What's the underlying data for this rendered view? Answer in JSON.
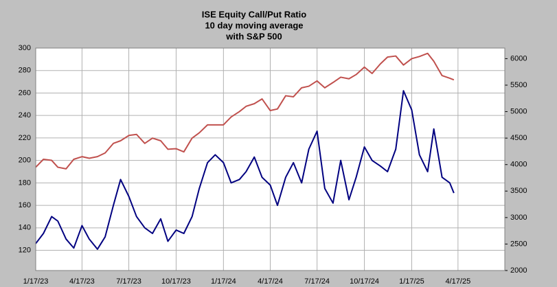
{
  "chart_data": {
    "type": "line",
    "title": [
      "ISE  Equity Call/Put Ratio",
      "10 day moving average",
      "with S&P 500"
    ],
    "x": [
      "1/17/23",
      "2/1/23",
      "2/17/23",
      "3/1/23",
      "3/17/23",
      "4/1/23",
      "4/17/23",
      "5/1/23",
      "5/17/23",
      "6/1/23",
      "6/17/23",
      "7/1/23",
      "7/17/23",
      "8/1/23",
      "8/17/23",
      "9/1/23",
      "9/17/23",
      "10/1/23",
      "10/17/23",
      "11/1/23",
      "11/17/23",
      "12/1/23",
      "12/17/23",
      "1/1/24",
      "1/17/24",
      "2/1/24",
      "2/17/24",
      "3/1/24",
      "3/17/24",
      "4/1/24",
      "4/17/24",
      "5/1/24",
      "5/17/24",
      "6/1/24",
      "6/17/24",
      "7/1/24",
      "7/17/24",
      "8/1/24",
      "8/17/24",
      "9/1/24",
      "9/17/24",
      "10/1/24",
      "10/17/24",
      "11/1/24",
      "11/17/24",
      "12/1/24",
      "12/17/24",
      "1/1/25",
      "1/17/25",
      "2/1/25",
      "2/17/25",
      "3/1/25",
      "3/17/25",
      "4/1/25",
      "4/9/25"
    ],
    "series": [
      {
        "color": "#000080",
        "axis": "y",
        "values": [
          126,
          135,
          150,
          146,
          130,
          122,
          142,
          130,
          121,
          132,
          160,
          183,
          168,
          150,
          140,
          135,
          148,
          128,
          138,
          135,
          150,
          175,
          198,
          205,
          198,
          180,
          183,
          190,
          203,
          185,
          178,
          160,
          185,
          198,
          180,
          210,
          226,
          175,
          162,
          200,
          165,
          185,
          212,
          200,
          195,
          190,
          210,
          262,
          245,
          205,
          190,
          228,
          185,
          180,
          171
        ]
      },
      {
        "color": "#c0504d",
        "axis": "y2",
        "values": [
          3950,
          4100,
          4080,
          3950,
          3920,
          4100,
          4150,
          4120,
          4150,
          4220,
          4400,
          4450,
          4550,
          4570,
          4400,
          4500,
          4450,
          4290,
          4300,
          4240,
          4500,
          4600,
          4750,
          4750,
          4750,
          4900,
          5000,
          5100,
          5150,
          5240,
          5020,
          5050,
          5300,
          5280,
          5450,
          5480,
          5580,
          5450,
          5550,
          5650,
          5620,
          5700,
          5840,
          5720,
          5900,
          6030,
          6050,
          5880,
          6000,
          6040,
          6100,
          5950,
          5680,
          5630,
          5600
        ]
      }
    ],
    "xlim": [
      "1/17/23",
      "7/17/25"
    ],
    "xticks": [
      "1/17/23",
      "4/17/23",
      "7/17/23",
      "10/17/23",
      "1/17/24",
      "4/17/24",
      "7/17/24",
      "10/17/24",
      "1/17/25",
      "4/17/25"
    ],
    "ylim": [
      102,
      300
    ],
    "yticks": [
      120,
      140,
      160,
      180,
      200,
      220,
      240,
      260,
      280,
      300
    ],
    "y2lim": [
      2000,
      6200
    ],
    "y2ticks": [
      2000,
      2500,
      3000,
      3500,
      4000,
      4500,
      5000,
      5500,
      6000
    ],
    "grid": true
  }
}
